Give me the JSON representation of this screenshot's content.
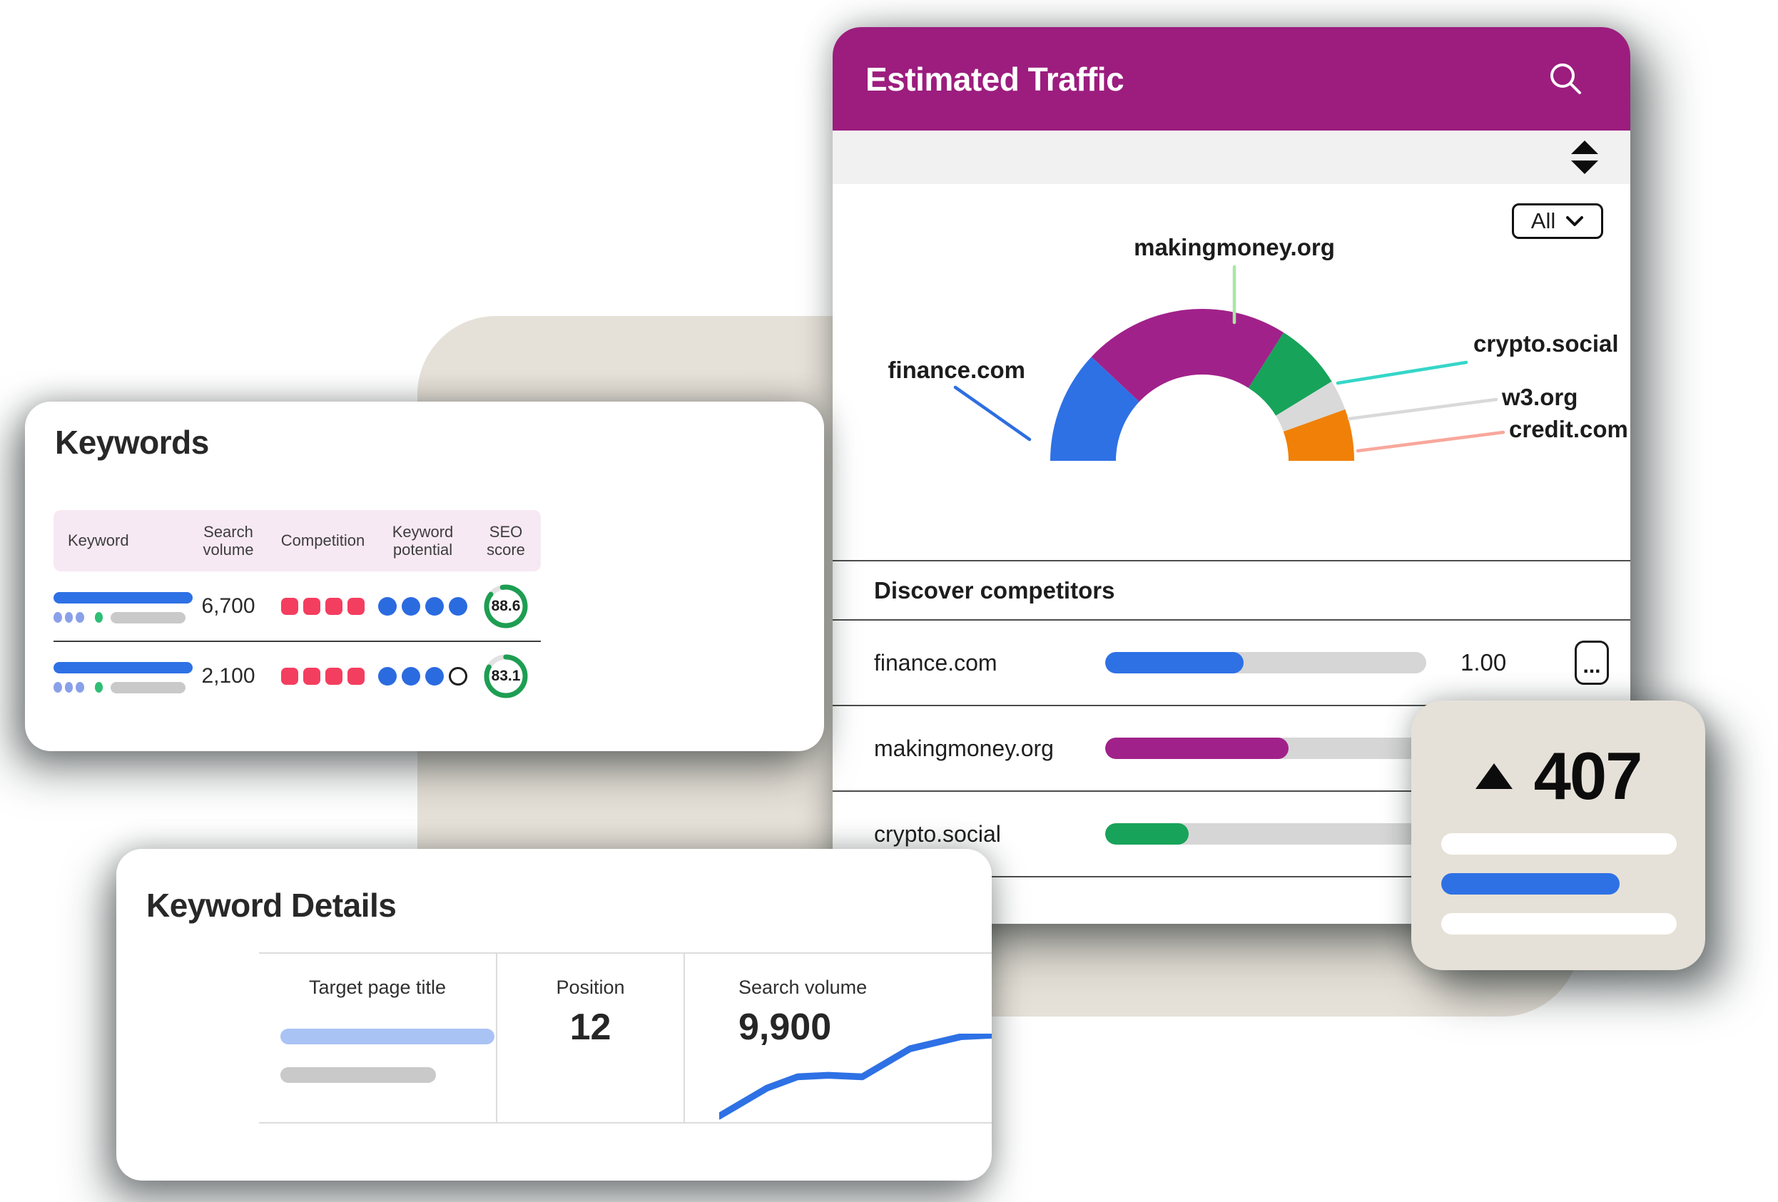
{
  "keywords_card": {
    "title": "Keywords",
    "table": {
      "headers": [
        "Keyword",
        "Search volume",
        "Competition",
        "Keyword potential",
        "SEO score"
      ],
      "rows": [
        {
          "search_volume": "6,700",
          "competition_level": 4,
          "competition_max": 4,
          "keyword_potential": 4,
          "keyword_potential_max": 4,
          "seo_score": "88.6"
        },
        {
          "search_volume": "2,100",
          "competition_level": 4,
          "competition_max": 4,
          "keyword_potential": 3,
          "keyword_potential_max": 4,
          "seo_score": "83.1"
        }
      ]
    },
    "colors": {
      "header_bg": "#f7e9f3",
      "competition": "#f43e5f",
      "potential": "#2b6be0",
      "seo_ring": "#1d9e52",
      "seo_track": "#e2e2e2",
      "placeholder_blue": "#2e71e5",
      "placeholder_periwinkle": "#8aa0e8",
      "placeholder_green": "#2fbe76",
      "placeholder_gray": "#c9c9c9"
    }
  },
  "keyword_details_card": {
    "title": "Keyword Details",
    "columns": [
      {
        "label": "Target page title"
      },
      {
        "label": "Position",
        "value": "12"
      },
      {
        "label": "Search volume",
        "value": "9,900"
      }
    ],
    "chart_data": {
      "type": "line",
      "title": "search volume trend",
      "color": "#2e71e5",
      "x_range": [
        0,
        400
      ],
      "y_range": [
        0,
        115
      ],
      "grid": false,
      "axes_hidden": true,
      "points": [
        [
          0,
          109
        ],
        [
          70,
          72
        ],
        [
          115,
          57
        ],
        [
          160,
          55
        ],
        [
          210,
          57
        ],
        [
          280,
          20
        ],
        [
          355,
          4
        ],
        [
          400,
          2
        ]
      ]
    }
  },
  "traffic_card": {
    "title": "Estimated Traffic",
    "header_color": "#9c1d7e",
    "filter": {
      "label": "All"
    },
    "chart_data": {
      "type": "pie",
      "subtype": "half-donut",
      "legend_position": "callout-labels",
      "segments": [
        {
          "label": "finance.com",
          "share": 24,
          "color": "#2e71e5",
          "leader_color": "#2e6ee0"
        },
        {
          "label": "makingmoney.org",
          "share": 44,
          "color": "#a1218a",
          "leader_color": "#a8e8a2"
        },
        {
          "label": "crypto.social",
          "share": 14.5,
          "color": "#17a35a",
          "leader_color": "#35d6c8"
        },
        {
          "label": "w3.org",
          "share": 6.5,
          "color": "#d9d9d9",
          "leader_color": "#d9d9d9"
        },
        {
          "label": "credit.com",
          "share": 11,
          "color": "#f08008",
          "leader_color": "#f8a79c"
        }
      ]
    },
    "competitors": {
      "heading": "Discover competitors",
      "rows": [
        {
          "name": "finance.com",
          "bar_pct": 43,
          "bar_color": "#2e71e5",
          "value": "1.00",
          "has_menu": true,
          "menu_label": "..."
        },
        {
          "name": "makingmoney.org",
          "bar_pct": 57,
          "bar_color": "#a1218a"
        },
        {
          "name": "crypto.social",
          "bar_pct": 26,
          "bar_color": "#17a35a"
        }
      ]
    }
  },
  "rank_card": {
    "direction": "up",
    "value": "407",
    "bar_color": "#2e71e5"
  }
}
